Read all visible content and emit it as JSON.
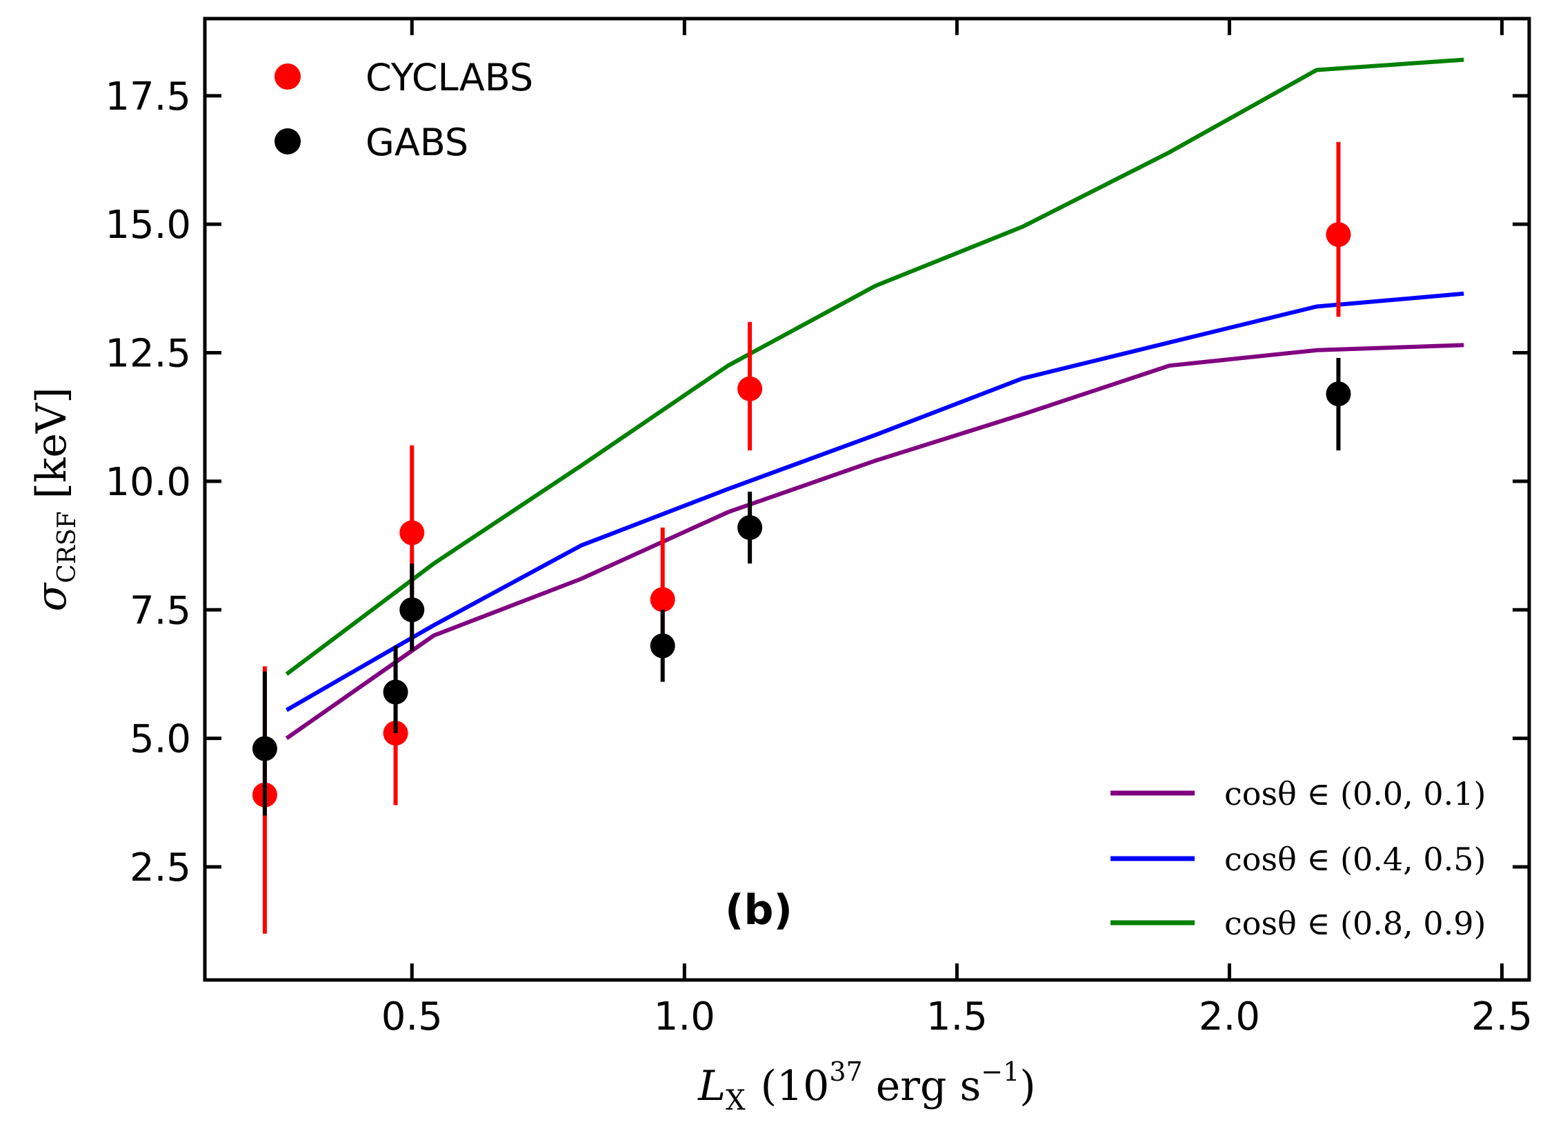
{
  "chart_data": {
    "type": "scatter",
    "panel_label": "(b)",
    "xlabel": {
      "base": "L",
      "sub": "X",
      "pre": "(10",
      "exp": "37",
      "mid": " erg s",
      "exp2": "−1",
      "post": ")"
    },
    "ylabel": {
      "base": "σ",
      "sub": "CRSF",
      "unit": "[keV]"
    },
    "xlim": [
      0.12,
      2.55
    ],
    "ylim": [
      0.3,
      19.0
    ],
    "xticks": [
      0.5,
      1.0,
      1.5,
      2.0,
      2.5
    ],
    "xtick_labels": [
      "0.5",
      "1.0",
      "1.5",
      "2.0",
      "2.5"
    ],
    "yticks": [
      2.5,
      5.0,
      7.5,
      10.0,
      12.5,
      15.0,
      17.5
    ],
    "ytick_labels": [
      "2.5",
      "5.0",
      "7.5",
      "10.0",
      "12.5",
      "15.0",
      "17.5"
    ],
    "points": [
      {
        "name": "CYCLABS",
        "color": "#ff0000",
        "x": [
          0.23,
          0.47,
          0.5,
          0.96,
          1.12,
          2.2
        ],
        "y": [
          3.9,
          5.1,
          9.0,
          7.7,
          11.8,
          14.8
        ],
        "yerr_low": [
          2.7,
          1.4,
          1.2,
          1.0,
          1.2,
          1.6
        ],
        "yerr_high": [
          2.5,
          1.6,
          1.7,
          1.4,
          1.3,
          1.8
        ]
      },
      {
        "name": "GABS",
        "color": "#000000",
        "x": [
          0.23,
          0.47,
          0.5,
          0.96,
          1.12,
          2.2
        ],
        "y": [
          4.8,
          5.9,
          7.5,
          6.8,
          9.1,
          11.7
        ],
        "yerr_low": [
          1.3,
          0.8,
          0.8,
          0.7,
          0.7,
          1.1
        ],
        "yerr_high": [
          1.5,
          0.9,
          0.9,
          0.7,
          0.7,
          0.7
        ]
      }
    ],
    "lines": [
      {
        "name": "cosθ ∈ (0.0, 0.1)",
        "color": "#800080",
        "x": [
          0.27,
          0.54,
          0.81,
          1.08,
          1.35,
          1.62,
          1.89,
          2.16,
          2.43
        ],
        "y": [
          5.0,
          7.0,
          8.1,
          9.4,
          10.4,
          11.3,
          12.25,
          12.55,
          12.65
        ]
      },
      {
        "name": "cosθ ∈ (0.4, 0.5)",
        "color": "#0000ff",
        "x": [
          0.27,
          0.54,
          0.81,
          1.08,
          1.35,
          1.62,
          1.89,
          2.16,
          2.43
        ],
        "y": [
          5.55,
          7.2,
          8.75,
          9.85,
          10.9,
          12.0,
          12.7,
          13.4,
          13.65
        ]
      },
      {
        "name": "cosθ ∈ (0.8, 0.9)",
        "color": "#008000",
        "x": [
          0.27,
          0.54,
          0.81,
          1.08,
          1.35,
          1.62,
          1.89,
          2.16,
          2.43
        ],
        "y": [
          6.25,
          8.4,
          10.3,
          12.25,
          13.8,
          14.95,
          16.4,
          18.0,
          18.2
        ]
      }
    ],
    "legend_points_position": "top-left",
    "legend_lines_position": "bottom-right"
  }
}
